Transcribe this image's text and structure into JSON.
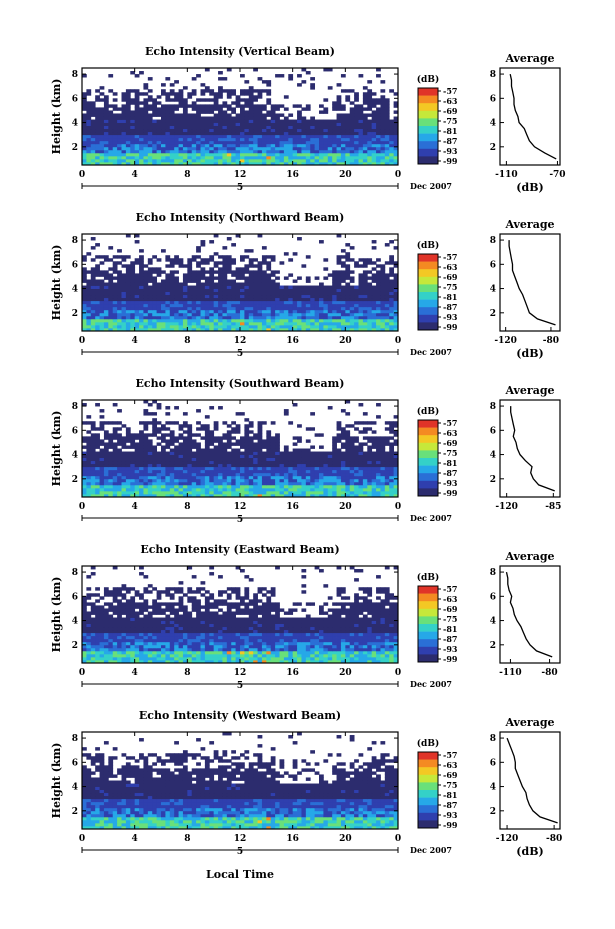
{
  "figure": {
    "xlabel": "Local Time"
  },
  "colorscale": [
    "#2c2c6e",
    "#2f3fae",
    "#2a6fd6",
    "#26a8e8",
    "#34d1c8",
    "#69e07a",
    "#c6e83a",
    "#f3c824",
    "#f48a22",
    "#e03428"
  ],
  "chart_data": [
    {
      "type": "heatmap",
      "title": "Echo Intensity (Vertical Beam)",
      "ylabel": "Height (km)",
      "x_ticks": [
        "0",
        "4",
        "8",
        "12",
        "16",
        "20",
        "0"
      ],
      "x_sub_label": "5",
      "date_label": "Dec 2007",
      "y_ticks": [
        "2",
        "4",
        "6",
        "8"
      ],
      "xlim": [
        0,
        24
      ],
      "ylim": [
        0.5,
        8.5
      ],
      "colorbar": {
        "unit": "(dB)",
        "ticks": [
          "-57",
          "-63",
          "-69",
          "-75",
          "-81",
          "-87",
          "-93",
          "-99"
        ]
      },
      "profile": {
        "type": "line",
        "title": "Average",
        "xlabel": "(dB)",
        "x_ticks": [
          "-110",
          "-70"
        ],
        "y_ticks": [
          "2",
          "4",
          "6",
          "8"
        ],
        "xlim": [
          -115,
          -68
        ],
        "ylim": [
          0.5,
          8.5
        ],
        "height": [
          1.0,
          1.5,
          2.0,
          2.5,
          3.0,
          3.5,
          4.0,
          4.5,
          5.0,
          5.5,
          6.0,
          6.5,
          7.0,
          7.5,
          8.0
        ],
        "db": [
          -71,
          -80,
          -88,
          -92,
          -94,
          -96,
          -100,
          -101,
          -103,
          -104,
          -104,
          -105,
          -106,
          -106,
          -107
        ]
      }
    },
    {
      "type": "heatmap",
      "title": "Echo Intensity (Northward Beam)",
      "ylabel": "Height (km)",
      "x_ticks": [
        "0",
        "4",
        "8",
        "12",
        "16",
        "20",
        "0"
      ],
      "x_sub_label": "5",
      "date_label": "Dec 2007",
      "y_ticks": [
        "2",
        "4",
        "6",
        "8"
      ],
      "xlim": [
        0,
        24
      ],
      "ylim": [
        0.5,
        8.5
      ],
      "colorbar": {
        "unit": "(dB)",
        "ticks": [
          "-57",
          "-63",
          "-69",
          "-75",
          "-81",
          "-87",
          "-93",
          "-99"
        ]
      },
      "profile": {
        "type": "line",
        "title": "Average",
        "xlabel": "(dB)",
        "x_ticks": [
          "-120",
          "-80"
        ],
        "y_ticks": [
          "2",
          "4",
          "6",
          "8"
        ],
        "xlim": [
          -125,
          -72
        ],
        "ylim": [
          0.5,
          8.5
        ],
        "height": [
          1.0,
          1.5,
          2.0,
          2.5,
          3.0,
          3.5,
          4.0,
          4.5,
          5.0,
          5.5,
          6.0,
          6.5,
          7.0,
          7.5,
          8.0
        ],
        "db": [
          -76,
          -92,
          -99,
          -101,
          -103,
          -105,
          -108,
          -110,
          -112,
          -114,
          -114,
          -115,
          -116,
          -117,
          -117
        ]
      }
    },
    {
      "type": "heatmap",
      "title": "Echo Intensity (Southward Beam)",
      "ylabel": "Height (km)",
      "x_ticks": [
        "0",
        "4",
        "8",
        "12",
        "16",
        "20",
        "0"
      ],
      "x_sub_label": "5",
      "date_label": "Dec 2007",
      "y_ticks": [
        "2",
        "4",
        "6",
        "8"
      ],
      "xlim": [
        0,
        24
      ],
      "ylim": [
        0.5,
        8.5
      ],
      "colorbar": {
        "unit": "(dB)",
        "ticks": [
          "-57",
          "-63",
          "-69",
          "-75",
          "-81",
          "-87",
          "-93",
          "-99"
        ]
      },
      "profile": {
        "type": "line",
        "title": "Average",
        "xlabel": "",
        "x_ticks": [
          "-120",
          "-85"
        ],
        "y_ticks": [
          "2",
          "4",
          "6",
          "8"
        ],
        "xlim": [
          -125,
          -80
        ],
        "ylim": [
          0.5,
          8.5
        ],
        "height": [
          1.0,
          1.5,
          2.0,
          2.5,
          3.0,
          3.5,
          4.0,
          4.5,
          5.0,
          5.5,
          6.0,
          6.5,
          7.0,
          7.5,
          8.0
        ],
        "db": [
          -84,
          -96,
          -100,
          -102,
          -101,
          -106,
          -110,
          -112,
          -113,
          -115,
          -114,
          -115,
          -116,
          -117,
          -117
        ]
      }
    },
    {
      "type": "heatmap",
      "title": "Echo Intensity (Eastward Beam)",
      "ylabel": "Height (km)",
      "x_ticks": [
        "0",
        "4",
        "8",
        "12",
        "16",
        "20",
        "0"
      ],
      "x_sub_label": "5",
      "date_label": "Dec 2007",
      "y_ticks": [
        "2",
        "4",
        "6",
        "8"
      ],
      "xlim": [
        0,
        24
      ],
      "ylim": [
        0.5,
        8.5
      ],
      "colorbar": {
        "unit": "(dB)",
        "ticks": [
          "-57",
          "-63",
          "-69",
          "-75",
          "-81",
          "-87",
          "-93",
          "-99"
        ]
      },
      "profile": {
        "type": "line",
        "title": "Average",
        "xlabel": "",
        "x_ticks": [
          "-110",
          "-80"
        ],
        "y_ticks": [
          "2",
          "4",
          "6",
          "8"
        ],
        "xlim": [
          -118,
          -72
        ],
        "ylim": [
          0.5,
          8.5
        ],
        "height": [
          1.0,
          1.5,
          2.0,
          2.5,
          3.0,
          3.5,
          4.0,
          4.5,
          5.0,
          5.5,
          6.0,
          6.5,
          7.0,
          7.5,
          8.0
        ],
        "db": [
          -78,
          -90,
          -95,
          -98,
          -100,
          -102,
          -105,
          -107,
          -108,
          -110,
          -109,
          -111,
          -112,
          -112,
          -113
        ]
      }
    },
    {
      "type": "heatmap",
      "title": "Echo Intensity (Westward Beam)",
      "ylabel": "Height (km)",
      "x_ticks": [
        "0",
        "4",
        "8",
        "12",
        "16",
        "20",
        "0"
      ],
      "x_sub_label": "5",
      "date_label": "Dec 2007",
      "y_ticks": [
        "2",
        "4",
        "6",
        "8"
      ],
      "xlim": [
        0,
        24
      ],
      "ylim": [
        0.5,
        8.5
      ],
      "colorbar": {
        "unit": "(dB)",
        "ticks": [
          "-57",
          "-63",
          "-69",
          "-75",
          "-81",
          "-87",
          "-93",
          "-99"
        ]
      },
      "profile": {
        "type": "line",
        "title": "Average",
        "xlabel": "(dB)",
        "x_ticks": [
          "-120",
          "-80"
        ],
        "y_ticks": [
          "2",
          "4",
          "6",
          "8"
        ],
        "xlim": [
          -126,
          -75
        ],
        "ylim": [
          0.5,
          8.5
        ],
        "height": [
          1.0,
          1.5,
          2.0,
          2.5,
          3.0,
          3.5,
          4.0,
          4.5,
          5.0,
          5.5,
          6.0,
          6.5,
          7.0,
          7.5,
          8.0
        ],
        "db": [
          -77,
          -92,
          -98,
          -101,
          -103,
          -104,
          -107,
          -109,
          -111,
          -113,
          -113,
          -114,
          -116,
          -118,
          -120
        ]
      }
    }
  ]
}
